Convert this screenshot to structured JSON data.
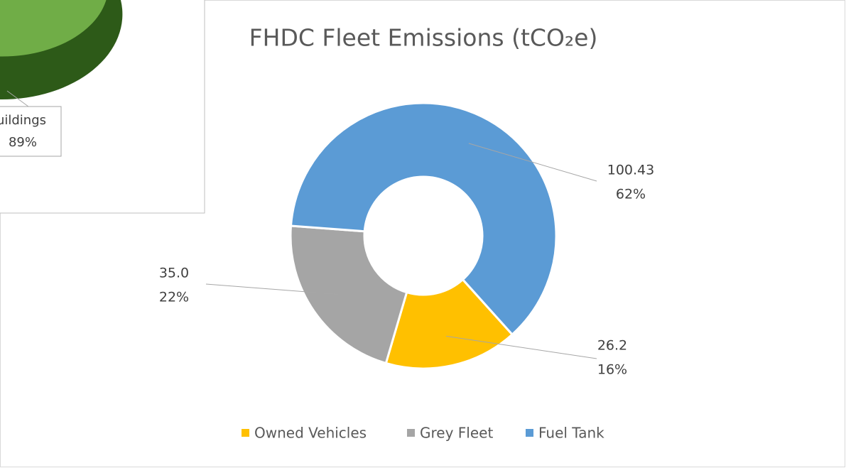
{
  "chart_data": [
    {
      "type": "donut",
      "title": "FHDC Fleet Emissions (tCO₂e)",
      "categories": [
        "Owned Vehicles",
        "Grey Fleet",
        "Fuel Tank"
      ],
      "values": [
        26.2,
        35.0,
        100.43
      ],
      "value_labels": [
        "26.2",
        "35.0",
        "100.43"
      ],
      "percent_labels": [
        "16%",
        "22%",
        "62%"
      ],
      "colors": [
        "#ffc000",
        "#a5a5a5",
        "#5b9bd5"
      ],
      "legend": "bottom"
    },
    {
      "type": "pie3d",
      "categories": [
        "uildings"
      ],
      "values": [
        89
      ],
      "value_labels": [
        "89%"
      ],
      "colors": [
        "#70ad47"
      ]
    }
  ]
}
